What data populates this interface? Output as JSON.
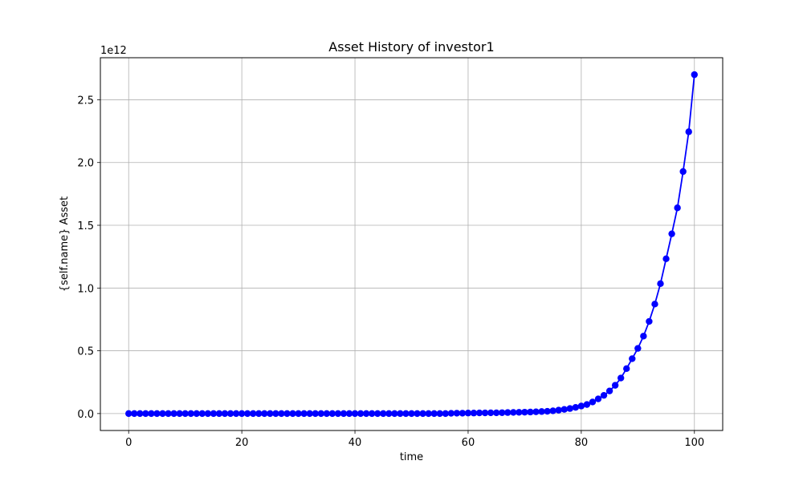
{
  "chart_data": {
    "type": "line",
    "title": "Asset History of investor1",
    "xlabel": "time",
    "ylabel": "{self.name} Asset",
    "offset_text": "1e12",
    "xlim": [
      -5,
      105
    ],
    "ylim": [
      -0.135,
      2.835
    ],
    "xticks": [
      0,
      20,
      40,
      60,
      80,
      100
    ],
    "xtick_labels": [
      "0",
      "20",
      "40",
      "60",
      "80",
      "100"
    ],
    "yticks": [
      0,
      0.5,
      1.0,
      1.5,
      2.0,
      2.5
    ],
    "ytick_labels": [
      "0.0",
      "0.5",
      "1.0",
      "1.5",
      "2.0",
      "2.5"
    ],
    "grid": true,
    "series": [
      {
        "color": "#0000ff",
        "marker": "circle",
        "x": [
          0,
          1,
          2,
          3,
          4,
          5,
          6,
          7,
          8,
          9,
          10,
          11,
          12,
          13,
          14,
          15,
          16,
          17,
          18,
          19,
          20,
          21,
          22,
          23,
          24,
          25,
          26,
          27,
          28,
          29,
          30,
          31,
          32,
          33,
          34,
          35,
          36,
          37,
          38,
          39,
          40,
          41,
          42,
          43,
          44,
          45,
          46,
          47,
          48,
          49,
          50,
          51,
          52,
          53,
          54,
          55,
          56,
          57,
          58,
          59,
          60,
          61,
          62,
          63,
          64,
          65,
          66,
          67,
          68,
          69,
          70,
          71,
          72,
          73,
          74,
          75,
          76,
          77,
          78,
          79,
          80,
          81,
          82,
          83,
          84,
          85,
          86,
          87,
          88,
          89,
          90,
          91,
          92,
          93,
          94,
          95,
          96,
          97,
          98,
          99,
          100
        ],
        "y": [
          0,
          0,
          0,
          0,
          0,
          0,
          0,
          0,
          0,
          0,
          0,
          0,
          0,
          0,
          0,
          0,
          0,
          0,
          0,
          0,
          0,
          0,
          0,
          0,
          0,
          0,
          0,
          0,
          0,
          0,
          0,
          0,
          0,
          0,
          0,
          0,
          0,
          0,
          0,
          0,
          0,
          0,
          0,
          0,
          0,
          0,
          0,
          0,
          0,
          0,
          0,
          0,
          0,
          0,
          0,
          0,
          0,
          0.002,
          0.003,
          0.003,
          0.004,
          0.004,
          0.005,
          0.005,
          0.006,
          0.006,
          0.007,
          0.008,
          0.009,
          0.01,
          0.011,
          0.012,
          0.014,
          0.016,
          0.018,
          0.022,
          0.027,
          0.033,
          0.04,
          0.049,
          0.06,
          0.072,
          0.092,
          0.117,
          0.145,
          0.18,
          0.225,
          0.283,
          0.358,
          0.437,
          0.519,
          0.617,
          0.734,
          0.872,
          1.035,
          1.233,
          1.432,
          1.639,
          1.928,
          2.245,
          2.7
        ]
      }
    ]
  }
}
